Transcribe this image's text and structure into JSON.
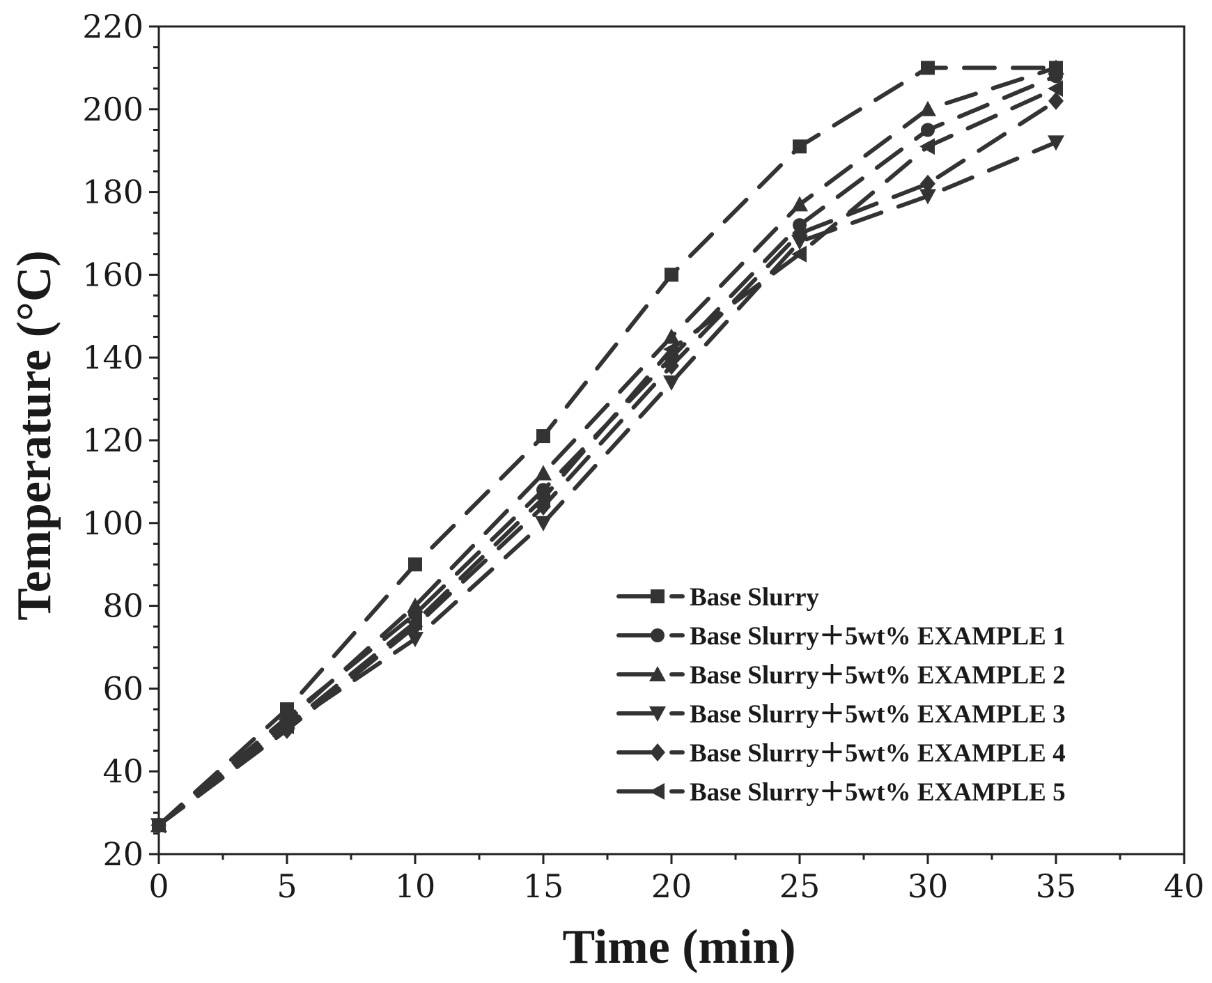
{
  "chart_data": {
    "type": "line",
    "title": "",
    "xlabel": "Time (min)",
    "ylabel": "Temperature (°C)",
    "xlim": [
      0,
      40
    ],
    "ylim": [
      20,
      220
    ],
    "x_ticks": [
      0,
      5,
      10,
      15,
      20,
      25,
      30,
      35,
      40
    ],
    "y_ticks": [
      20,
      40,
      60,
      80,
      100,
      120,
      140,
      160,
      180,
      200,
      220
    ],
    "grid": false,
    "legend_position": "bottom-right",
    "line_style": "dashed",
    "color": "#333333",
    "series": [
      {
        "name": "Base Slurry",
        "marker": "square",
        "x": [
          0,
          5,
          10,
          15,
          20,
          25,
          30,
          35
        ],
        "y": [
          27,
          55,
          90,
          121,
          160,
          191,
          210,
          210
        ]
      },
      {
        "name": "Base Slurry＋5wt% EXAMPLE 1",
        "marker": "circle",
        "x": [
          0,
          5,
          10,
          15,
          20,
          25,
          30,
          35
        ],
        "y": [
          27,
          53,
          78,
          108,
          140,
          172,
          195,
          208
        ]
      },
      {
        "name": "Base Slurry＋5wt% EXAMPLE 2",
        "marker": "triangle-up",
        "x": [
          0,
          5,
          10,
          15,
          20,
          25,
          30,
          35
        ],
        "y": [
          27,
          52,
          80,
          112,
          145,
          177,
          200,
          210
        ]
      },
      {
        "name": "Base Slurry＋5wt% EXAMPLE 3",
        "marker": "triangle-down",
        "x": [
          0,
          5,
          10,
          15,
          20,
          25,
          30,
          35
        ],
        "y": [
          27,
          51,
          72,
          100,
          134,
          168,
          179,
          192
        ]
      },
      {
        "name": "Base Slurry＋5wt% EXAMPLE 4",
        "marker": "diamond",
        "x": [
          0,
          5,
          10,
          15,
          20,
          25,
          30,
          35
        ],
        "y": [
          27,
          50,
          75,
          104,
          138,
          170,
          182,
          202
        ]
      },
      {
        "name": "Base Slurry＋5wt% EXAMPLE 5",
        "marker": "triangle-left",
        "x": [
          0,
          5,
          10,
          15,
          20,
          25,
          30,
          35
        ],
        "y": [
          27,
          51,
          76,
          106,
          142,
          165,
          191,
          205
        ]
      }
    ]
  }
}
